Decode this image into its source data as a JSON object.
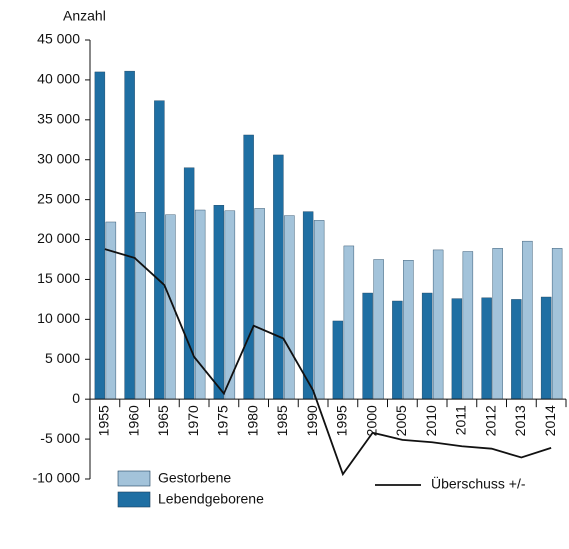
{
  "chart_data": {
    "type": "bar",
    "y_label": "Anzahl",
    "categories": [
      "1955",
      "1960",
      "1965",
      "1970",
      "1975",
      "1980",
      "1985",
      "1990",
      "1995",
      "2000",
      "2005",
      "2010",
      "2011",
      "2012",
      "2013",
      "2014"
    ],
    "series": [
      {
        "name": "Lebendgeborene",
        "color": "#1f6fa3",
        "type": "bar",
        "values": [
          41000,
          41100,
          37400,
          29000,
          24300,
          33100,
          30600,
          23500,
          9800,
          13300,
          12300,
          13300,
          12600,
          12700,
          12500,
          12800
        ]
      },
      {
        "name": "Gestorbene",
        "color": "#a3c3da",
        "type": "bar",
        "values": [
          22200,
          23400,
          23100,
          23700,
          23600,
          23900,
          23000,
          22400,
          19200,
          17500,
          17400,
          18700,
          18500,
          18900,
          19800,
          18900
        ]
      },
      {
        "name": "Überschuss +/-",
        "color": "#111111",
        "type": "line",
        "values": [
          18800,
          17700,
          14300,
          5300,
          700,
          9200,
          7600,
          1100,
          -9400,
          -4200,
          -5100,
          -5400,
          -5900,
          -6200,
          -7300,
          -6100
        ]
      }
    ],
    "ylim": [
      -10000,
      45000
    ],
    "yticks": [
      {
        "value": -10000,
        "label": "-10 000"
      },
      {
        "value": -5000,
        "label": "-5 000"
      },
      0,
      {
        "value": 5000,
        "label": "5 000"
      },
      {
        "value": 10000,
        "label": "10 000"
      },
      {
        "value": 15000,
        "label": "15 000"
      },
      {
        "value": 20000,
        "label": "20 000"
      },
      {
        "value": 25000,
        "label": "25 000"
      },
      {
        "value": 30000,
        "label": "30 000"
      },
      {
        "value": 35000,
        "label": "35 000"
      },
      {
        "value": 40000,
        "label": "40 000"
      },
      {
        "value": 45000,
        "label": "45 000"
      }
    ]
  }
}
